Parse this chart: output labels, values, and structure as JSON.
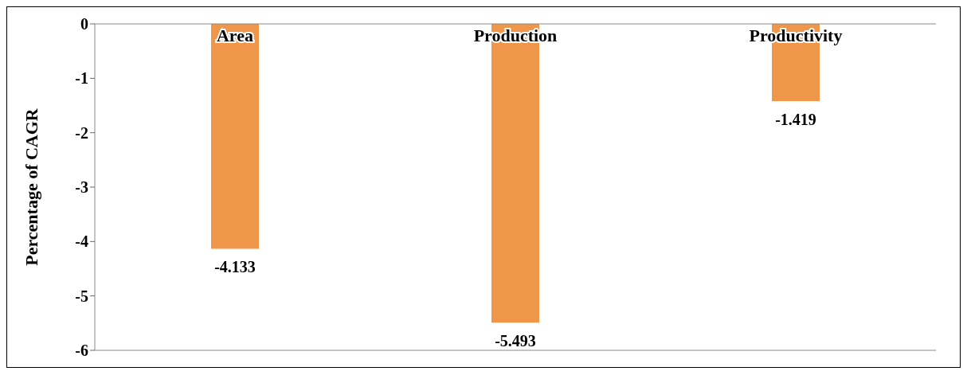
{
  "chart_data": {
    "type": "bar",
    "ylabel": "Percentage of CAGR",
    "categories": [
      "Area",
      "Production",
      "Productivity"
    ],
    "values": [
      -4.133,
      -5.493,
      -1.419
    ],
    "color": "#f0964a",
    "ylim": [
      -6,
      0
    ],
    "yticks": [
      -6,
      -5,
      -4,
      -3,
      -2,
      -1,
      0
    ],
    "data_labels": true,
    "grid": false,
    "legend": false
  }
}
